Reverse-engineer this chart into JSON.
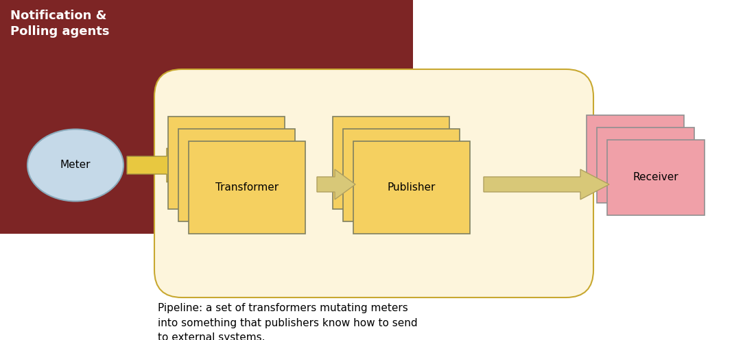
{
  "fig_width": 10.67,
  "fig_height": 4.96,
  "bg_color": "#ffffff",
  "dark_red_bg": "#7D2525",
  "pipeline_bg": "#FDF5DC",
  "pipeline_border": "#C8A830",
  "notification_label": "Notification &\nPolling agents",
  "meter_label": "Meter",
  "transformer_label": "Transformer",
  "publisher_label": "Publisher",
  "receiver_label": "Receiver",
  "caption": "Pipeline: a set of transformers mutating meters\ninto something that publishers know how to send\nto external systems.",
  "meter_fill": "#C5D9E8",
  "meter_border": "#8AAABB",
  "transformer_fill": "#F5D060",
  "transformer_border": "#808060",
  "publisher_fill": "#F5D060",
  "publisher_border": "#808060",
  "receiver_fill": "#F0A0A8",
  "receiver_border": "#909090",
  "arrow_fill": "#E8C840",
  "arrow_border": "#A09040",
  "arrow_fill_light": "#D8C878",
  "arrow_border_light": "#B0A060"
}
